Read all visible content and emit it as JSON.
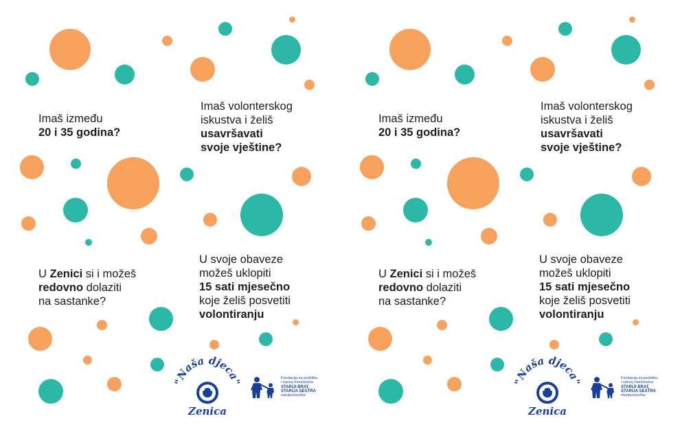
{
  "q1": {
    "line1": "Imaš između",
    "line2": "20 i 35 godina?"
  },
  "q2": {
    "line1": "Imaš volonterskog",
    "line2": "iskustva i želiš",
    "line3": "usavršavati",
    "line4": "svoje vještine?"
  },
  "q3": {
    "pre": "U ",
    "zenici": "Zenici",
    "post": " si i možeš",
    "redovno": "redovno",
    "dolaziti": " dolaziti",
    "line3": "na sastanke?"
  },
  "q4": {
    "line1": "U svoje obaveze",
    "line2": "možeš uklopiti",
    "line3": "15 sati mjesečno",
    "line4": "koje želiš posvetiti",
    "line5": "volontiranju"
  },
  "logo_nasa": {
    "top": "\"Naša djeca\"",
    "bottom": "Zenica"
  },
  "logo_fond": {
    "l1": "Fondacija za podršku",
    "l2": "i razvoj mentorstva",
    "l3": "STARIJI BRAT,",
    "l4": "STARIJA SESTRA",
    "l5": "mentorstvo/ha"
  },
  "colors": {
    "orange": "#f6a15c",
    "teal": "#2bb8a7",
    "logo_blue": "#1a3f9a"
  }
}
